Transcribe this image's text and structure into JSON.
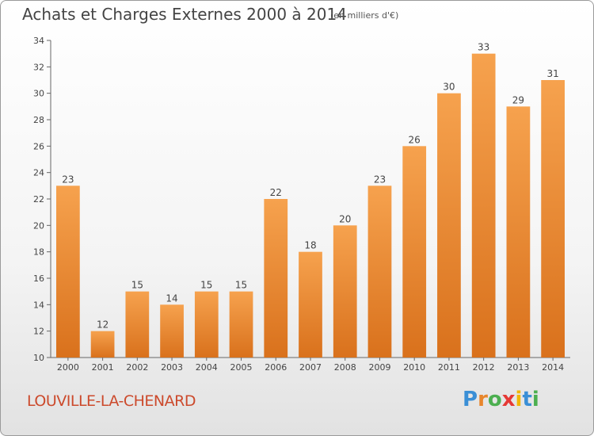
{
  "title": "Achats et Charges Externes 2000 à 2014",
  "unit": "(en milliers d'€)",
  "commune": "LOUVILLE-LA-CHENARD",
  "logo": {
    "text": "Proxiti",
    "colors": [
      "#3a8fd6",
      "#e8862c",
      "#4caf50",
      "#e53935",
      "#f2b705",
      "#3a8fd6",
      "#4caf50"
    ]
  },
  "colors": {
    "bar_light": "#f6a24e",
    "bar_dark": "#d9711c",
    "axis": "#666666",
    "grid": "#cccccc",
    "text": "#444444"
  },
  "chart_data": {
    "type": "bar",
    "title": "Achats et Charges Externes 2000 à 2014",
    "ylabel": "(en milliers d'€)",
    "categories": [
      "2000",
      "2001",
      "2002",
      "2003",
      "2004",
      "2005",
      "2006",
      "2007",
      "2008",
      "2009",
      "2010",
      "2011",
      "2012",
      "2013",
      "2014"
    ],
    "values": [
      23,
      12,
      15,
      14,
      15,
      15,
      22,
      18,
      20,
      23,
      26,
      30,
      33,
      29,
      31
    ],
    "ylim": [
      10,
      34
    ],
    "yticks": [
      10,
      12,
      14,
      16,
      18,
      20,
      22,
      24,
      26,
      28,
      30,
      32,
      34
    ],
    "grid": false,
    "data_labels": true
  }
}
